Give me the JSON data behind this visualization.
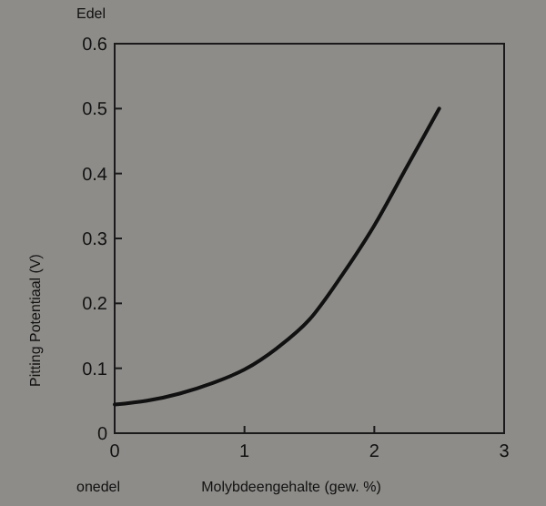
{
  "chart_data": {
    "type": "line",
    "xlabel": "Molybdeengehalte (gew. %)",
    "ylabel": "Pitting Potentiaal (V)",
    "annotations": [
      "Edel",
      "onedel"
    ],
    "x": [
      0,
      0.25,
      0.5,
      0.75,
      1,
      1.25,
      1.5,
      1.75,
      2,
      2.25,
      2.5
    ],
    "series": [
      {
        "color": "#111111",
        "values": [
          0.044,
          0.05,
          0.061,
          0.077,
          0.098,
          0.131,
          0.175,
          0.243,
          0.32,
          0.41,
          0.5
        ]
      }
    ],
    "xlim": [
      0,
      3
    ],
    "ylim": [
      0,
      0.6
    ],
    "xticks": [
      0,
      1,
      2,
      3
    ],
    "yticks": [
      0,
      0.1,
      0.2,
      0.3,
      0.4,
      0.5,
      0.6
    ],
    "grid": false,
    "marker": "none",
    "line_style": "solid"
  }
}
